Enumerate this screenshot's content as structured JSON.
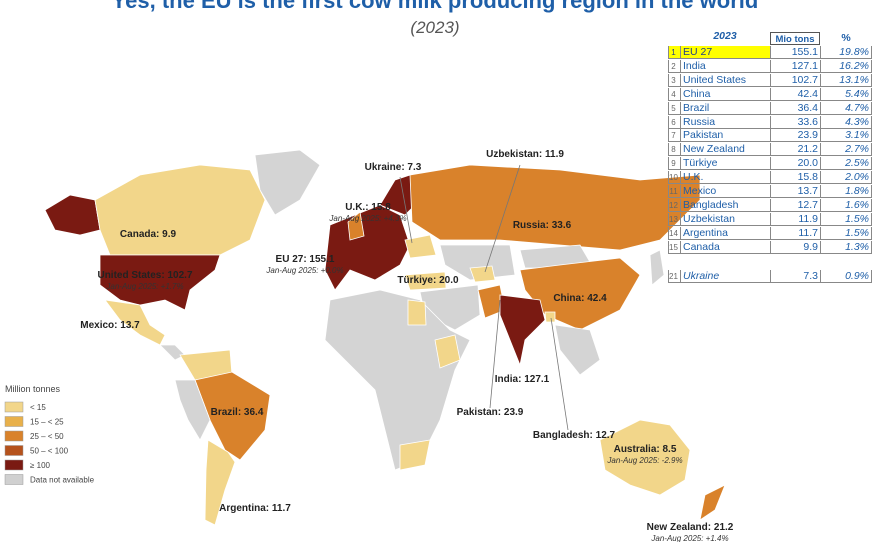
{
  "header": {
    "title": "Yes, the EU is the first cow milk producing region in the world",
    "subtitle": "(2023)"
  },
  "table": {
    "year": "2023",
    "columns": [
      "Mio tons",
      "%"
    ],
    "rows": [
      [
        "1",
        "EU 27",
        "155.1",
        "19.8%"
      ],
      [
        "2",
        "India",
        "127.1",
        "16.2%"
      ],
      [
        "3",
        "United States",
        "102.7",
        "13.1%"
      ],
      [
        "4",
        "China",
        "42.4",
        "5.4%"
      ],
      [
        "5",
        "Brazil",
        "36.4",
        "4.7%"
      ],
      [
        "6",
        "Russia",
        "33.6",
        "4.3%"
      ],
      [
        "7",
        "Pakistan",
        "23.9",
        "3.1%"
      ],
      [
        "8",
        "New Zealand",
        "21.2",
        "2.7%"
      ],
      [
        "9",
        "Türkiye",
        "20.0",
        "2.5%"
      ],
      [
        "10",
        "U.K.",
        "15.8",
        "2.0%"
      ],
      [
        "11",
        "Mexico",
        "13.7",
        "1.8%"
      ],
      [
        "12",
        "Bangladesh",
        "12.7",
        "1.6%"
      ],
      [
        "13",
        "Uzbekistan",
        "11.9",
        "1.5%"
      ],
      [
        "14",
        "Argentina",
        "11.7",
        "1.5%"
      ],
      [
        "15",
        "Canada",
        "9.9",
        "1.3%"
      ]
    ],
    "extra_row": [
      "21",
      "Ukraine",
      "7.3",
      "0.9%"
    ]
  },
  "map_labels": [
    {
      "text": "Canada: 9.9"
    },
    {
      "text": "U.K.: 15.8",
      "note": "Jan-Aug 2025: +4.3%"
    },
    {
      "text": "Ukraine: 7.3"
    },
    {
      "text": "Uzbekistan: 11.9"
    },
    {
      "text": "Russia: 33.6"
    },
    {
      "text": "EU 27: 155.1",
      "note": "Jan-Aug 2025: +0.0%"
    },
    {
      "text": "United States: 102.7",
      "note": "Jan-Aug 2025: +1.7%"
    },
    {
      "text": "Türkiye: 20.0"
    },
    {
      "text": "China: 42.4"
    },
    {
      "text": "Mexico: 13.7"
    },
    {
      "text": "India: 127.1"
    },
    {
      "text": "Brazil: 36.4"
    },
    {
      "text": "Pakistan: 23.9"
    },
    {
      "text": "Bangladesh: 12.7"
    },
    {
      "text": "Australia: 8.5",
      "note": "Jan-Aug 2025: -2.9%"
    },
    {
      "text": "Argentina: 11.7"
    },
    {
      "text": "New Zealand: 21.2",
      "note": "Jan-Aug 2025: +1.4%"
    }
  ],
  "legend": {
    "title": "Million tonnes",
    "items": [
      "< 15",
      "15 – < 25",
      "25 – < 50",
      "50 – < 100",
      "≥ 100",
      "Data not available"
    ]
  }
}
